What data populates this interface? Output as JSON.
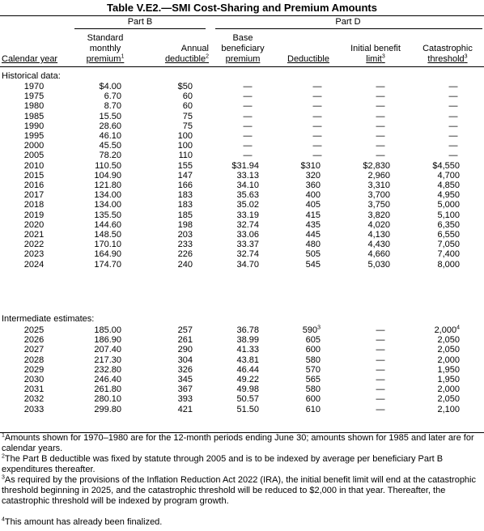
{
  "title": "Table V.E2.—SMI Cost-Sharing and Premium Amounts",
  "groups": {
    "part_b": "Part B",
    "part_d": "Part D"
  },
  "columns": {
    "year": "Calendar year",
    "b_premium": [
      "Standard",
      "monthly",
      "premium"
    ],
    "b_premium_sup": "1",
    "b_deductible": [
      "Annual",
      "deductible"
    ],
    "b_deductible_sup": "2",
    "d_premium": [
      "Base",
      "beneficiary",
      "premium"
    ],
    "d_deductible": "Deductible",
    "d_ibl": [
      "Initial benefit",
      "limit"
    ],
    "d_ibl_sup": "3",
    "d_cat": [
      "Catastrophic",
      "threshold"
    ],
    "d_cat_sup": "3"
  },
  "sections": {
    "historical": "Historical data:",
    "intermediate": "Intermediate estimates:"
  },
  "historical_rows": [
    {
      "year": "1970",
      "b_prem": "$4.00",
      "b_ded": "$50",
      "d_prem": "—",
      "d_ded": "—",
      "d_ibl": "—",
      "d_cat": "—"
    },
    {
      "year": "1975",
      "b_prem": "6.70",
      "b_ded": "60",
      "d_prem": "—",
      "d_ded": "—",
      "d_ibl": "—",
      "d_cat": "—"
    },
    {
      "year": "1980",
      "b_prem": "8.70",
      "b_ded": "60",
      "d_prem": "—",
      "d_ded": "—",
      "d_ibl": "—",
      "d_cat": "—"
    },
    {
      "year": "1985",
      "b_prem": "15.50",
      "b_ded": "75",
      "d_prem": "—",
      "d_ded": "—",
      "d_ibl": "—",
      "d_cat": "—"
    },
    {
      "year": "1990",
      "b_prem": "28.60",
      "b_ded": "75",
      "d_prem": "—",
      "d_ded": "—",
      "d_ibl": "—",
      "d_cat": "—"
    },
    {
      "year": "1995",
      "b_prem": "46.10",
      "b_ded": "100",
      "d_prem": "—",
      "d_ded": "—",
      "d_ibl": "—",
      "d_cat": "—"
    },
    {
      "year": "2000",
      "b_prem": "45.50",
      "b_ded": "100",
      "d_prem": "—",
      "d_ded": "—",
      "d_ibl": "—",
      "d_cat": "—"
    },
    {
      "year": "2005",
      "b_prem": "78.20",
      "b_ded": "110",
      "d_prem": "—",
      "d_ded": "—",
      "d_ibl": "—",
      "d_cat": "—"
    },
    {
      "year": "2010",
      "b_prem": "110.50",
      "b_ded": "155",
      "d_prem": "$31.94",
      "d_ded": "$310",
      "d_ibl": "$2,830",
      "d_cat": "$4,550"
    },
    {
      "year": "2015",
      "b_prem": "104.90",
      "b_ded": "147",
      "d_prem": "33.13",
      "d_ded": "320",
      "d_ibl": "2,960",
      "d_cat": "4,700"
    },
    {
      "year": "2016",
      "b_prem": "121.80",
      "b_ded": "166",
      "d_prem": "34.10",
      "d_ded": "360",
      "d_ibl": "3,310",
      "d_cat": "4,850"
    },
    {
      "year": "2017",
      "b_prem": "134.00",
      "b_ded": "183",
      "d_prem": "35.63",
      "d_ded": "400",
      "d_ibl": "3,700",
      "d_cat": "4,950"
    },
    {
      "year": "2018",
      "b_prem": "134.00",
      "b_ded": "183",
      "d_prem": "35.02",
      "d_ded": "405",
      "d_ibl": "3,750",
      "d_cat": "5,000"
    },
    {
      "year": "2019",
      "b_prem": "135.50",
      "b_ded": "185",
      "d_prem": "33.19",
      "d_ded": "415",
      "d_ibl": "3,820",
      "d_cat": "5,100"
    },
    {
      "year": "2020",
      "b_prem": "144.60",
      "b_ded": "198",
      "d_prem": "32.74",
      "d_ded": "435",
      "d_ibl": "4,020",
      "d_cat": "6,350"
    },
    {
      "year": "2021",
      "b_prem": "148.50",
      "b_ded": "203",
      "d_prem": "33.06",
      "d_ded": "445",
      "d_ibl": "4,130",
      "d_cat": "6,550"
    },
    {
      "year": "2022",
      "b_prem": "170.10",
      "b_ded": "233",
      "d_prem": "33.37",
      "d_ded": "480",
      "d_ibl": "4,430",
      "d_cat": "7,050"
    },
    {
      "year": "2023",
      "b_prem": "164.90",
      "b_ded": "226",
      "d_prem": "32.74",
      "d_ded": "505",
      "d_ibl": "4,660",
      "d_cat": "7,400"
    },
    {
      "year": "2024",
      "b_prem": "174.70",
      "b_ded": "240",
      "d_prem": "34.70",
      "d_ded": "545",
      "d_ibl": "5,030",
      "d_cat": "8,000"
    }
  ],
  "intermediate_rows": [
    {
      "year": "2025",
      "b_prem": "185.00",
      "b_ded": "257",
      "d_prem": "36.78",
      "d_ded": "590",
      "d_ded_sup": "3",
      "d_ibl": "—",
      "d_cat": "2,000",
      "d_cat_sup": "4"
    },
    {
      "year": "2026",
      "b_prem": "186.90",
      "b_ded": "261",
      "d_prem": "38.99",
      "d_ded": "605",
      "d_ibl": "—",
      "d_cat": "2,050"
    },
    {
      "year": "2027",
      "b_prem": "207.40",
      "b_ded": "290",
      "d_prem": "41.33",
      "d_ded": "600",
      "d_ibl": "—",
      "d_cat": "2,050"
    },
    {
      "year": "2028",
      "b_prem": "217.30",
      "b_ded": "304",
      "d_prem": "43.81",
      "d_ded": "580",
      "d_ibl": "—",
      "d_cat": "2,000"
    },
    {
      "year": "2029",
      "b_prem": "232.80",
      "b_ded": "326",
      "d_prem": "46.44",
      "d_ded": "570",
      "d_ibl": "—",
      "d_cat": "1,950"
    },
    {
      "year": "2030",
      "b_prem": "246.40",
      "b_ded": "345",
      "d_prem": "49.22",
      "d_ded": "565",
      "d_ibl": "—",
      "d_cat": "1,950"
    },
    {
      "year": "2031",
      "b_prem": "261.80",
      "b_ded": "367",
      "d_prem": "49.98",
      "d_ded": "580",
      "d_ibl": "—",
      "d_cat": "2,000"
    },
    {
      "year": "2032",
      "b_prem": "280.10",
      "b_ded": "393",
      "d_prem": "50.57",
      "d_ded": "600",
      "d_ibl": "—",
      "d_cat": "2,050"
    },
    {
      "year": "2033",
      "b_prem": "299.80",
      "b_ded": "421",
      "d_prem": "51.50",
      "d_ded": "610",
      "d_ibl": "—",
      "d_cat": "2,100"
    }
  ],
  "footnotes": [
    {
      "num": "1",
      "text": "Amounts shown for 1970–1980 are for the 12-month periods ending June 30; amounts shown for 1985 and later are for calendar years."
    },
    {
      "num": "2",
      "text": "The Part B deductible was fixed by statute through 2005 and is to be indexed by average per beneficiary Part B expenditures thereafter."
    },
    {
      "num": "3",
      "text": "As required by the provisions of the Inflation Reduction Act 2022 (IRA), the initial benefit limit will end at the catastrophic threshold beginning in 2025, and the catastrophic threshold will be reduced to $2,000 in that year. Thereafter, the catastrophic threshold will be indexed by program growth."
    },
    {
      "num": "4",
      "text": "This amount has already been finalized."
    }
  ]
}
